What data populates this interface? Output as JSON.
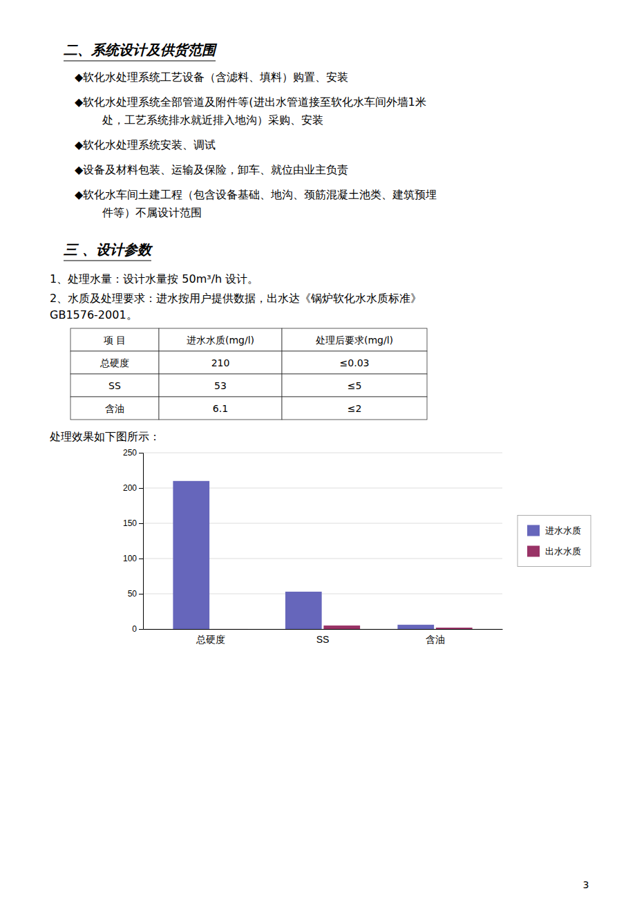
{
  "section2_title": "二、系统设计及供货范围",
  "section2_bullets": [
    [
      "◆软化水处理系统工艺设备（含滤料、填料）购置、安装"
    ],
    [
      "◆软化水处理系统全部管道及附件等(进出水管道接至软化水车间外墙1米",
      "处，工艺系统排水就近排入地沟）采购、安装"
    ],
    [
      "◆软化水处理系统安装、调试"
    ],
    [
      "◆设备及材料包装、运输及保险，卸车、就位由业主负责"
    ],
    [
      "◆软化水车间土建工程（包含设备基础、地沟、颈筋混凝土池类、建筑预埋",
      "件等）不属设计范围"
    ]
  ],
  "section3_title": "三 、设计参数",
  "paragraphs": [
    "1、处理水量：设计水量按 50m³/h 设计。",
    "2、水质及处理要求：进水按用户提供数据，出水达《锅炉软化水水质标准》",
    "GB1576-2001。"
  ],
  "table": {
    "header": [
      "项    目",
      "进水水质(mg/l)",
      "处理后要求(mg/l)"
    ],
    "rows": [
      [
        "总硬度",
        "210",
        "≤0.03"
      ],
      [
        "SS",
        "53",
        "≤5"
      ],
      [
        "含油",
        "6.1",
        "≤2"
      ]
    ]
  },
  "chart_caption": "处理效果如下图所示：",
  "chart_data": {
    "type": "bar",
    "categories": [
      "总硬度",
      "SS",
      "含油"
    ],
    "series": [
      {
        "name": "进水水质",
        "color": "#6666bb",
        "values": [
          210,
          53,
          6.1
        ]
      },
      {
        "name": "出水水质",
        "color": "#993366",
        "values": [
          0.03,
          5,
          2
        ]
      }
    ],
    "ylim": [
      0,
      250
    ],
    "yticks": [
      0,
      50,
      100,
      150,
      200,
      250
    ],
    "grid": true,
    "legend": "right"
  },
  "page_number": "3"
}
